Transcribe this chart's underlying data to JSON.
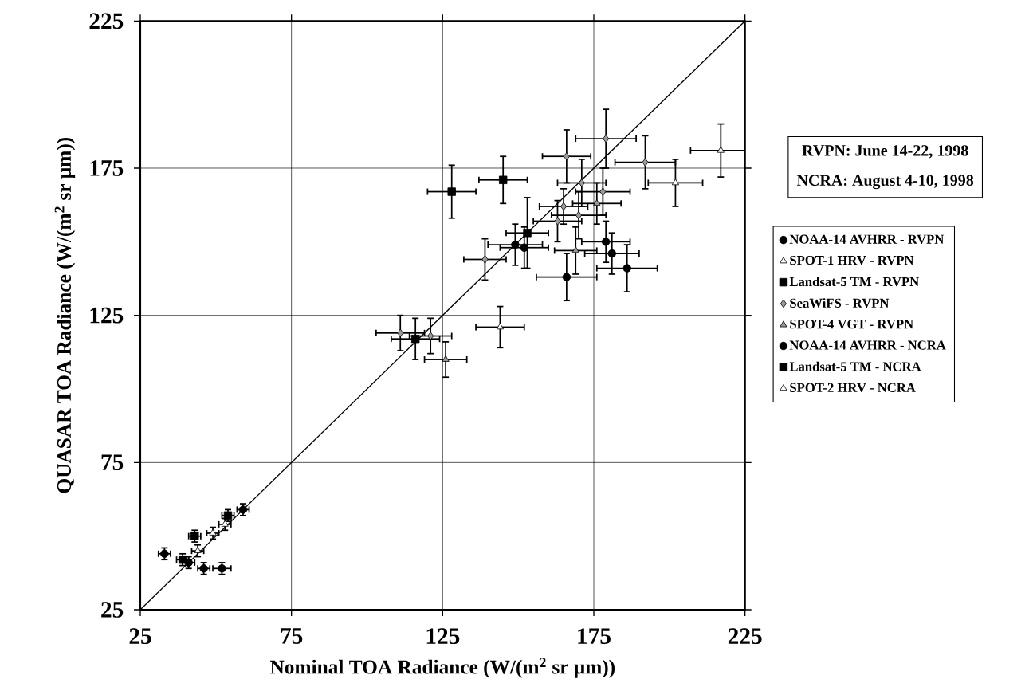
{
  "chart_data": {
    "type": "scatter",
    "xlabel": "Nominal TOA Radiance (W/(m$^{2}$ sr μm))",
    "ylabel": "QUASAR TOA Radiance (W/(m$^{2}$ sr μm))",
    "xlim": [
      25,
      225
    ],
    "ylim": [
      25,
      225
    ],
    "xticks": [
      25,
      75,
      125,
      175,
      225
    ],
    "yticks": [
      25,
      75,
      125,
      175,
      225
    ],
    "grid": true,
    "legend": "right",
    "annotations": [
      "RVPN: June 14-22, 1998",
      "NCRA: August 4-10, 1998"
    ],
    "series": [
      {
        "name": "NOAA-14 AVHRR - RVPN",
        "color": "#000000",
        "marker": "circle",
        "x": [
          149,
          152,
          166,
          179,
          181,
          186
        ],
        "values": [
          149,
          148,
          138,
          150,
          146,
          141
        ],
        "xerrors": [
          9,
          8,
          10,
          8,
          9,
          10
        ],
        "errors": [
          7,
          7,
          8,
          7,
          7,
          8
        ]
      },
      {
        "name": "SPOT-1 HRV - RVPN",
        "color": "#ffffff",
        "marker": "triangle",
        "x": [
          144,
          202,
          217
        ],
        "values": [
          121,
          170,
          181
        ],
        "xerrors": [
          8,
          9,
          10
        ],
        "errors": [
          7,
          8,
          9
        ]
      },
      {
        "name": "Landsat-5 TM - RVPN",
        "color": "#000000",
        "marker": "square",
        "x": [
          116,
          128,
          145,
          153
        ],
        "values": [
          117,
          167,
          171,
          153
        ],
        "xerrors": [
          8,
          8,
          8,
          7
        ],
        "errors": [
          7,
          9,
          8,
          12
        ]
      },
      {
        "name": "SeaWiFS - RVPN",
        "color": "#999999",
        "marker": "diamond",
        "x": [
          111,
          121,
          139,
          163,
          165,
          170,
          166,
          171,
          178,
          179,
          192
        ],
        "values": [
          119,
          118,
          144,
          157,
          162,
          159,
          179,
          170,
          167,
          185,
          177
        ],
        "xerrors": [
          8,
          7,
          7,
          8,
          8,
          9,
          8,
          8,
          9,
          10,
          10
        ],
        "errors": [
          6,
          6,
          7,
          7,
          6,
          8,
          9,
          8,
          8,
          10,
          9
        ]
      },
      {
        "name": "SPOT-4 VGT - RVPN",
        "color": "#999999",
        "marker": "triangle",
        "x": [
          126,
          169,
          176
        ],
        "values": [
          110,
          147,
          163
        ],
        "xerrors": [
          7,
          7,
          8
        ],
        "errors": [
          6,
          8,
          7
        ]
      },
      {
        "name": "NOAA-14 AVHRR - NCRA",
        "color": "#000000",
        "marker": "circle",
        "x": [
          33,
          41,
          46,
          52,
          59
        ],
        "values": [
          44,
          41,
          39,
          39,
          59
        ],
        "xerrors": [
          2,
          2,
          2,
          3,
          2
        ],
        "errors": [
          2,
          2,
          2,
          2,
          2
        ]
      },
      {
        "name": "Landsat-5 TM - NCRA",
        "color": "#000000",
        "marker": "square",
        "x": [
          39,
          43,
          54
        ],
        "values": [
          42,
          50,
          57
        ],
        "xerrors": [
          2,
          2,
          2
        ],
        "errors": [
          2,
          2,
          2
        ]
      },
      {
        "name": "SPOT-2 HRV - NCRA",
        "color": "#ffffff",
        "marker": "triangle",
        "x": [
          44,
          49,
          53
        ],
        "values": [
          45,
          51,
          54
        ],
        "xerrors": [
          2,
          2,
          2
        ],
        "errors": [
          2,
          2,
          2
        ]
      },
      {
        "type": "line",
        "color": "#000000",
        "marker": "none",
        "x": [
          25,
          225
        ],
        "values": [
          25,
          225
        ]
      }
    ]
  }
}
